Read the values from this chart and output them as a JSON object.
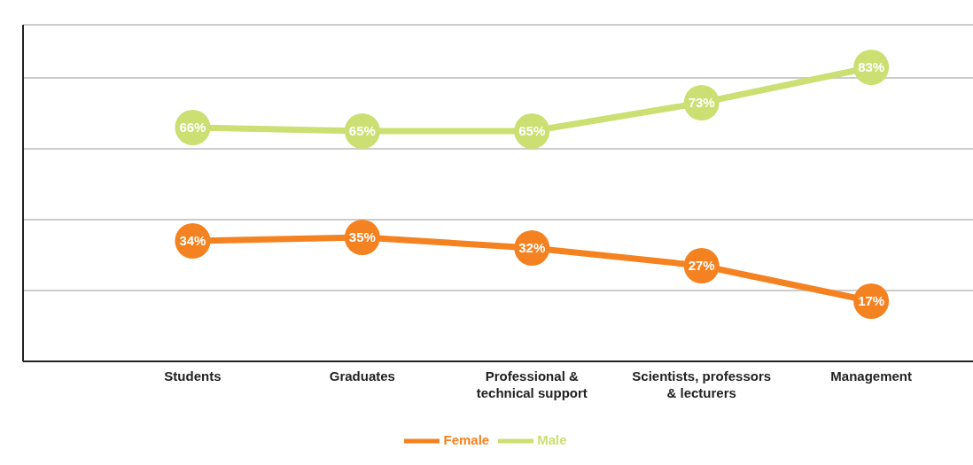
{
  "chart_data": {
    "type": "line",
    "categories": [
      "Students",
      "Graduates",
      "Professional & technical support",
      "Scientists, professors & lecturers",
      "Management"
    ],
    "series": [
      {
        "name": "Female",
        "color": "#f58220",
        "values": [
          34,
          35,
          32,
          27,
          17
        ],
        "value_labels": [
          "34%",
          "35%",
          "32%",
          "27%",
          "17%"
        ]
      },
      {
        "name": "Male",
        "color": "#cbdf72",
        "values": [
          66,
          65,
          65,
          73,
          83
        ],
        "value_labels": [
          "66%",
          "65%",
          "65%",
          "73%",
          "83%"
        ]
      }
    ],
    "tick_labels": "x",
    "grid": "y",
    "legend": "bottom",
    "marker": "circle",
    "line_style": "solid"
  }
}
